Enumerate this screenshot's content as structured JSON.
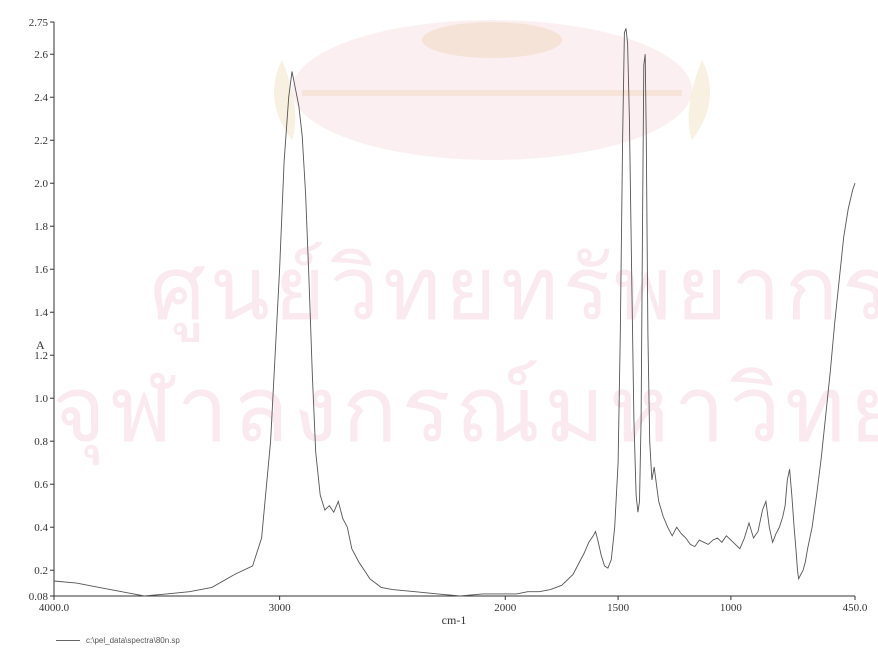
{
  "watermark": {
    "line1": "ศูนย์วิทยทรัพยากร",
    "line2": "จุฬาลงกรณ์มหาวิทยาลัย"
  },
  "footer": {
    "filename": "c:\\pel_data\\spectra\\80n.sp"
  },
  "colors": {
    "line": "#555555",
    "axis": "#333333",
    "watermark": "#cc2255"
  },
  "chart_data": {
    "type": "line",
    "xlabel": "cm-1",
    "ylabel": "A",
    "xlim": [
      4000.0,
      450.0
    ],
    "ylim": [
      0.08,
      2.75
    ],
    "x_reversed": true,
    "x_ticks": [
      {
        "value": 4000,
        "label": "4000.0"
      },
      {
        "value": 3000,
        "label": "3000"
      },
      {
        "value": 2000,
        "label": "2000"
      },
      {
        "value": 1500,
        "label": "1500"
      },
      {
        "value": 1000,
        "label": "1000"
      },
      {
        "value": 450,
        "label": "450.0"
      }
    ],
    "y_ticks": [
      {
        "value": 2.75,
        "label": "2.75"
      },
      {
        "value": 2.6,
        "label": "2.6"
      },
      {
        "value": 2.4,
        "label": "2.4"
      },
      {
        "value": 2.2,
        "label": "2.2"
      },
      {
        "value": 2.0,
        "label": "2.0"
      },
      {
        "value": 1.8,
        "label": "1.8"
      },
      {
        "value": 1.6,
        "label": "1.6"
      },
      {
        "value": 1.4,
        "label": "1.4"
      },
      {
        "value": 1.2,
        "label": "1.2"
      },
      {
        "value": 1.0,
        "label": "1.0"
      },
      {
        "value": 0.8,
        "label": "0.8"
      },
      {
        "value": 0.6,
        "label": "0.6"
      },
      {
        "value": 0.4,
        "label": "0.4"
      },
      {
        "value": 0.2,
        "label": "0.2"
      },
      {
        "value": 0.08,
        "label": "0.08"
      }
    ],
    "grid": false,
    "series": [
      {
        "x": [
          4000,
          3900,
          3800,
          3700,
          3600,
          3500,
          3400,
          3300,
          3200,
          3120,
          3080,
          3040,
          3000,
          2980,
          2960,
          2945,
          2930,
          2915,
          2900,
          2885,
          2870,
          2855,
          2840,
          2820,
          2800,
          2780,
          2760,
          2740,
          2720,
          2700,
          2680,
          2650,
          2600,
          2550,
          2500,
          2400,
          2300,
          2200,
          2100,
          2000,
          1950,
          1900,
          1850,
          1800,
          1750,
          1700,
          1650,
          1630,
          1610,
          1600,
          1590,
          1575,
          1560,
          1545,
          1530,
          1515,
          1500,
          1490,
          1480,
          1472,
          1465,
          1458,
          1450,
          1440,
          1430,
          1420,
          1412,
          1405,
          1398,
          1392,
          1386,
          1380,
          1375,
          1368,
          1360,
          1350,
          1340,
          1330,
          1320,
          1300,
          1280,
          1260,
          1240,
          1220,
          1200,
          1180,
          1160,
          1140,
          1120,
          1100,
          1080,
          1060,
          1040,
          1020,
          1000,
          980,
          960,
          940,
          920,
          900,
          880,
          860,
          845,
          830,
          815,
          800,
          785,
          770,
          760,
          750,
          740,
          730,
          720,
          712,
          705,
          700,
          690,
          680,
          670,
          660,
          640,
          620,
          600,
          580,
          560,
          540,
          520,
          500,
          480,
          460,
          450
        ],
        "y": [
          0.15,
          0.14,
          0.12,
          0.1,
          0.08,
          0.09,
          0.1,
          0.12,
          0.18,
          0.22,
          0.35,
          0.8,
          1.6,
          2.1,
          2.4,
          2.52,
          2.44,
          2.36,
          2.22,
          1.95,
          1.55,
          1.1,
          0.75,
          0.55,
          0.48,
          0.5,
          0.47,
          0.52,
          0.44,
          0.4,
          0.3,
          0.24,
          0.16,
          0.12,
          0.11,
          0.1,
          0.09,
          0.08,
          0.09,
          0.09,
          0.09,
          0.1,
          0.1,
          0.11,
          0.13,
          0.18,
          0.28,
          0.33,
          0.36,
          0.38,
          0.34,
          0.27,
          0.22,
          0.21,
          0.25,
          0.4,
          0.7,
          1.3,
          2.2,
          2.7,
          2.72,
          2.65,
          2.3,
          1.6,
          0.9,
          0.55,
          0.47,
          0.52,
          0.9,
          1.8,
          2.55,
          2.6,
          2.2,
          1.3,
          0.8,
          0.62,
          0.68,
          0.6,
          0.52,
          0.45,
          0.4,
          0.36,
          0.4,
          0.37,
          0.35,
          0.32,
          0.31,
          0.34,
          0.33,
          0.32,
          0.34,
          0.35,
          0.33,
          0.36,
          0.34,
          0.32,
          0.3,
          0.35,
          0.42,
          0.35,
          0.38,
          0.48,
          0.52,
          0.4,
          0.33,
          0.37,
          0.4,
          0.45,
          0.5,
          0.62,
          0.67,
          0.55,
          0.4,
          0.3,
          0.2,
          0.16,
          0.18,
          0.2,
          0.24,
          0.3,
          0.4,
          0.55,
          0.72,
          0.92,
          1.12,
          1.35,
          1.55,
          1.75,
          1.88,
          1.97,
          2.0
        ]
      }
    ]
  }
}
